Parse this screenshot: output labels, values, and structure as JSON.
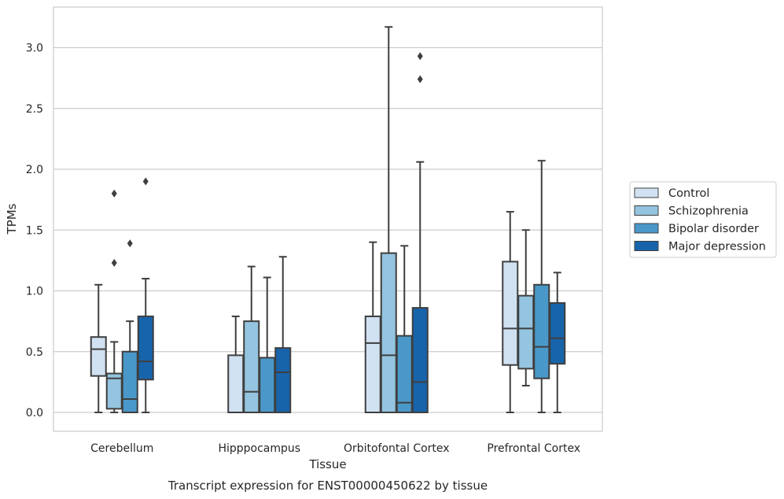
{
  "chart_data": {
    "type": "boxplot",
    "xlabel": "Tissue",
    "ylabel": "TPMs",
    "caption": "Transcript expression for ENST00000450622 by tissue",
    "categories": [
      "Cerebellum",
      "Hipppocampus",
      "Orbitofontal Cortex",
      "Prefrontal Cortex"
    ],
    "ylim": [
      -0.15,
      3.35
    ],
    "yticks": [
      "0.0",
      "0.5",
      "1.0",
      "1.5",
      "2.0",
      "2.5",
      "3.0"
    ],
    "grid": "horizontal",
    "legend_position": "right",
    "series": [
      {
        "name": "Control",
        "color": "#d0e1f2",
        "boxes": [
          {
            "whislo": 0.0,
            "q1": 0.3,
            "med": 0.52,
            "q3": 0.62,
            "whishi": 1.05,
            "fliers": []
          },
          {
            "whislo": 0.0,
            "q1": 0.0,
            "med": 0.0,
            "q3": 0.47,
            "whishi": 0.79,
            "fliers": []
          },
          {
            "whislo": 0.0,
            "q1": 0.0,
            "med": 0.57,
            "q3": 0.79,
            "whishi": 1.4,
            "fliers": []
          },
          {
            "whislo": 0.0,
            "q1": 0.39,
            "med": 0.69,
            "q3": 1.24,
            "whishi": 1.65,
            "fliers": []
          }
        ]
      },
      {
        "name": "Schizophrenia",
        "color": "#94c4df",
        "boxes": [
          {
            "whislo": 0.0,
            "q1": 0.03,
            "med": 0.28,
            "q3": 0.32,
            "whishi": 0.58,
            "fliers": [
              1.23,
              1.8
            ]
          },
          {
            "whislo": 0.0,
            "q1": 0.0,
            "med": 0.17,
            "q3": 0.75,
            "whishi": 1.2,
            "fliers": []
          },
          {
            "whislo": 0.0,
            "q1": 0.0,
            "med": 0.47,
            "q3": 1.31,
            "whishi": 3.17,
            "fliers": []
          },
          {
            "whislo": 0.22,
            "q1": 0.36,
            "med": 0.69,
            "q3": 0.96,
            "whishi": 1.5,
            "fliers": []
          }
        ]
      },
      {
        "name": "Bipolar disorder",
        "color": "#4a98c9",
        "boxes": [
          {
            "whislo": 0.0,
            "q1": 0.0,
            "med": 0.11,
            "q3": 0.5,
            "whishi": 0.75,
            "fliers": [
              1.39
            ]
          },
          {
            "whislo": 0.0,
            "q1": 0.0,
            "med": 0.45,
            "q3": 0.45,
            "whishi": 1.11,
            "fliers": []
          },
          {
            "whislo": 0.0,
            "q1": 0.0,
            "med": 0.08,
            "q3": 0.63,
            "whishi": 1.37,
            "fliers": []
          },
          {
            "whislo": 0.0,
            "q1": 0.28,
            "med": 0.54,
            "q3": 1.05,
            "whishi": 2.07,
            "fliers": []
          }
        ]
      },
      {
        "name": "Major depression",
        "color": "#1764ab",
        "boxes": [
          {
            "whislo": 0.0,
            "q1": 0.27,
            "med": 0.42,
            "q3": 0.79,
            "whishi": 1.1,
            "fliers": [
              1.9
            ]
          },
          {
            "whislo": 0.0,
            "q1": 0.0,
            "med": 0.33,
            "q3": 0.53,
            "whishi": 1.28,
            "fliers": []
          },
          {
            "whislo": 0.0,
            "q1": 0.0,
            "med": 0.25,
            "q3": 0.86,
            "whishi": 2.06,
            "fliers": [
              2.74,
              2.93
            ]
          },
          {
            "whislo": 0.0,
            "q1": 0.4,
            "med": 0.61,
            "q3": 0.9,
            "whishi": 1.15,
            "fliers": []
          }
        ]
      }
    ]
  }
}
